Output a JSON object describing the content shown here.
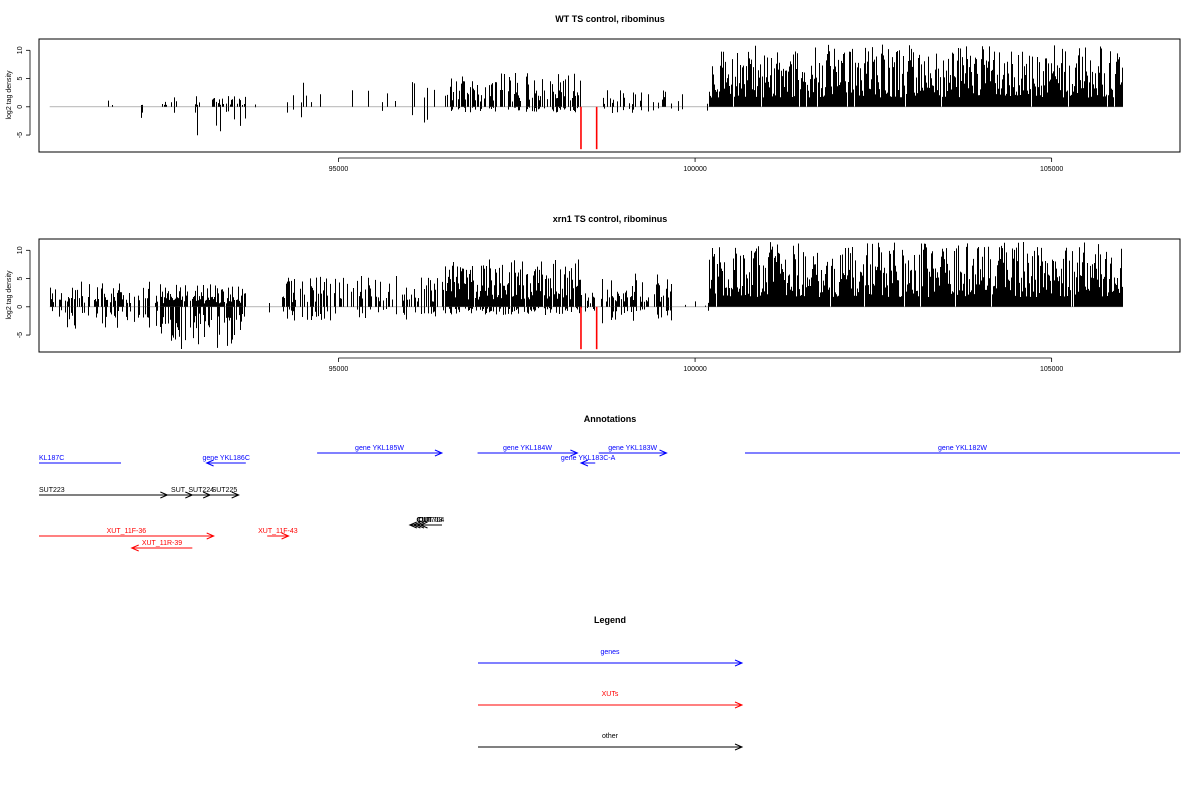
{
  "chart_data": [
    {
      "type": "bar",
      "title": "WT TS control, ribominus",
      "ylabel": "log2 tag density",
      "xlabel": "",
      "xlim": [
        90800,
        106800
      ],
      "ylim": [
        -8,
        12
      ],
      "yticks": [
        -5,
        0,
        5,
        10
      ],
      "xticks": [
        95000,
        100000,
        105000
      ],
      "xtick_labels": [
        "95000",
        "100000",
        "105000"
      ],
      "grid": false,
      "bar_color": "#000000",
      "highlight_color": "#ff0000",
      "profile": [
        {
          "from": 90950,
          "to": 92500,
          "density": 0.06,
          "pos_max": 2.0,
          "neg_max": -2.6
        },
        {
          "from": 92500,
          "to": 93700,
          "density": 0.35,
          "pos_max": 2.0,
          "neg_max": -5.4
        },
        {
          "from": 93700,
          "to": 94200,
          "density": 0.03,
          "pos_max": 0.5,
          "neg_max": -0.5
        },
        {
          "from": 94200,
          "to": 96500,
          "density": 0.12,
          "pos_max": 4.5,
          "neg_max": -2.8
        },
        {
          "from": 96500,
          "to": 98400,
          "density": 0.6,
          "pos_max": 6.0,
          "neg_max": -1.0
        },
        {
          "from": 98400,
          "to": 98700,
          "density": 0.05,
          "pos_max": 1.0,
          "neg_max": -1.0
        },
        {
          "from": 98700,
          "to": 99700,
          "density": 0.3,
          "pos_max": 3.0,
          "neg_max": -1.5
        },
        {
          "from": 99700,
          "to": 100200,
          "density": 0.08,
          "pos_max": 3.0,
          "neg_max": -2.0
        },
        {
          "from": 100200,
          "to": 106000,
          "density": 0.95,
          "pos_max": 11.0,
          "neg_max": 0
        }
      ],
      "highlights": [
        {
          "x": 98400,
          "y": -7.5
        },
        {
          "x": 98620,
          "y": -7.5
        }
      ]
    },
    {
      "type": "bar",
      "title": "xrn1 TS control, ribominus",
      "ylabel": "log2 tag density",
      "xlabel": "",
      "xlim": [
        90800,
        106800
      ],
      "ylim": [
        -8,
        12
      ],
      "yticks": [
        -5,
        0,
        5,
        10
      ],
      "xticks": [
        95000,
        100000,
        105000
      ],
      "xtick_labels": [
        "95000",
        "100000",
        "105000"
      ],
      "grid": false,
      "bar_color": "#000000",
      "highlight_color": "#ff0000",
      "profile": [
        {
          "from": 90950,
          "to": 92500,
          "density": 0.45,
          "pos_max": 4.5,
          "neg_max": -4.0
        },
        {
          "from": 92500,
          "to": 93700,
          "density": 0.85,
          "pos_max": 4.0,
          "neg_max": -7.5
        },
        {
          "from": 93700,
          "to": 94200,
          "density": 0.05,
          "pos_max": 4.0,
          "neg_max": -1.0
        },
        {
          "from": 94200,
          "to": 96500,
          "density": 0.55,
          "pos_max": 5.5,
          "neg_max": -2.5
        },
        {
          "from": 96500,
          "to": 98400,
          "density": 0.95,
          "pos_max": 8.5,
          "neg_max": -1.5
        },
        {
          "from": 98400,
          "to": 98700,
          "density": 0.3,
          "pos_max": 2.5,
          "neg_max": -1.0
        },
        {
          "from": 98700,
          "to": 99700,
          "density": 0.6,
          "pos_max": 6.0,
          "neg_max": -3.0
        },
        {
          "from": 99700,
          "to": 100200,
          "density": 0.05,
          "pos_max": 1.0,
          "neg_max": -1.0
        },
        {
          "from": 100200,
          "to": 106000,
          "density": 0.98,
          "pos_max": 11.5,
          "neg_max": 0
        }
      ],
      "highlights": [
        {
          "x": 98400,
          "y": -7.5
        },
        {
          "x": 98620,
          "y": -7.5
        }
      ]
    }
  ],
  "annotations": {
    "title": "Annotations",
    "xlim": [
      90800,
      106800
    ],
    "genes": [
      {
        "label": "KL187C",
        "start": 90800,
        "end": 91950,
        "strand": "-",
        "row": 1,
        "color": "#0000ff"
      },
      {
        "label": "gene YKL186C",
        "start": 93150,
        "end": 93700,
        "strand": "-",
        "row": 1,
        "color": "#0000ff"
      },
      {
        "label": "gene YKL185W",
        "start": 94700,
        "end": 96450,
        "strand": "+",
        "row": 0,
        "color": "#0000ff"
      },
      {
        "label": "gene YKL184W",
        "start": 96950,
        "end": 98350,
        "strand": "+",
        "row": 0,
        "color": "#0000ff"
      },
      {
        "label": "gene YKL183C-A",
        "start": 98400,
        "end": 98600,
        "strand": "-",
        "row": 1,
        "color": "#0000ff"
      },
      {
        "label": "gene YKL183W",
        "start": 98650,
        "end": 99600,
        "strand": "+",
        "row": 0,
        "color": "#0000ff"
      },
      {
        "label": "gene YKL182W",
        "start": 100700,
        "end": 106800,
        "strand": "+",
        "row": 0,
        "color": "#0000ff"
      }
    ],
    "other": [
      {
        "label": "SUT223",
        "start": 90800,
        "end": 92600,
        "strand": "+",
        "row": 2,
        "color": "#000000"
      },
      {
        "label": "SUT",
        "start": 92550,
        "end": 92950,
        "strand": "+",
        "row": 2,
        "color": "#000000"
      },
      {
        "label": "SUT224",
        "start": 92950,
        "end": 93200,
        "strand": "+",
        "row": 2,
        "color": "#000000"
      },
      {
        "label": "SUT225",
        "start": 93200,
        "end": 93600,
        "strand": "+",
        "row": 2,
        "color": "#000000"
      },
      {
        "label": "CUT",
        "start": 96000,
        "end": 96450,
        "strand": "-",
        "row": 3,
        "color": "#000000"
      },
      {
        "label": "CUT",
        "start": 96050,
        "end": 96350,
        "strand": "-",
        "row": 3,
        "color": "#000000"
      },
      {
        "label": "CUT703",
        "start": 96100,
        "end": 96450,
        "strand": "-",
        "row": 3,
        "color": "#000000"
      },
      {
        "label": "CUT704",
        "start": 96150,
        "end": 96450,
        "strand": "-",
        "row": 3,
        "color": "#000000"
      }
    ],
    "xuts": [
      {
        "label": "XUT_11F-36",
        "start": 90800,
        "end": 93250,
        "strand": "+",
        "row": 4,
        "color": "#ff0000"
      },
      {
        "label": "XUT_11R-39",
        "start": 92100,
        "end": 92950,
        "strand": "-",
        "row": 5,
        "color": "#ff0000"
      },
      {
        "label": "XUT_11F-43",
        "start": 94000,
        "end": 94300,
        "strand": "+",
        "row": 4,
        "color": "#ff0000"
      }
    ]
  },
  "legend": {
    "title": "Legend",
    "items": [
      {
        "label": "genes",
        "color": "#0000ff"
      },
      {
        "label": "XUTs",
        "color": "#ff0000"
      },
      {
        "label": "other",
        "color": "#000000"
      }
    ]
  }
}
